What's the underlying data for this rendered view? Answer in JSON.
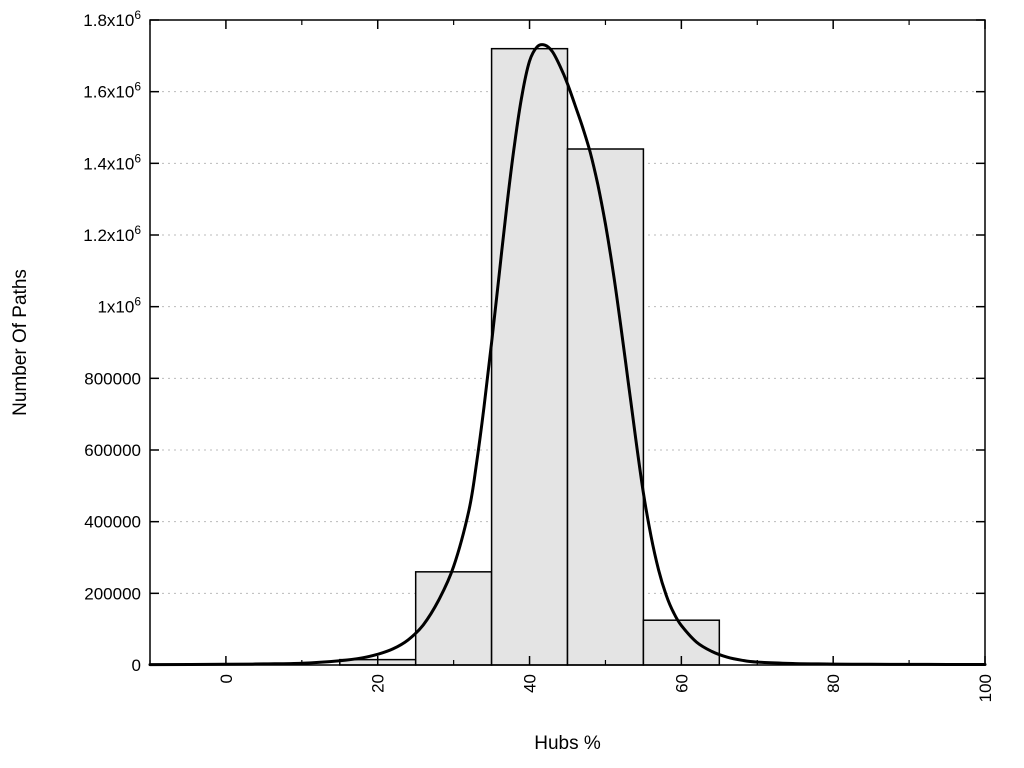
{
  "chart_data": {
    "type": "bar",
    "subtype": "histogram_with_fit_curve",
    "title": "",
    "xlabel": "Hubs %",
    "ylabel": "Number Of Paths",
    "xlim": [
      -10,
      100
    ],
    "ylim": [
      0,
      1800000
    ],
    "x_major_ticks": [
      0,
      20,
      40,
      60,
      80,
      100
    ],
    "x_minor_step": 10,
    "x_tick_rotation": -90,
    "y_ticks": [
      {
        "value": 0,
        "label": "0"
      },
      {
        "value": 200000,
        "label": "200000"
      },
      {
        "value": 400000,
        "label": "400000"
      },
      {
        "value": 600000,
        "label": "600000"
      },
      {
        "value": 800000,
        "label": "800000"
      },
      {
        "value": 1000000,
        "label": "1x10^6"
      },
      {
        "value": 1200000,
        "label": "1.2x10^6"
      },
      {
        "value": 1400000,
        "label": "1.4x10^6"
      },
      {
        "value": 1600000,
        "label": "1.6x10^6"
      },
      {
        "value": 1800000,
        "label": "1.8x10^6"
      }
    ],
    "grid": {
      "y": true,
      "x": false,
      "style": "dotted"
    },
    "legend": null,
    "bars": [
      {
        "x0": 15,
        "x1": 25,
        "value": 15000
      },
      {
        "x0": 25,
        "x1": 35,
        "value": 260000
      },
      {
        "x0": 35,
        "x1": 45,
        "value": 1720000
      },
      {
        "x0": 45,
        "x1": 55,
        "value": 1440000
      },
      {
        "x0": 55,
        "x1": 65,
        "value": 125000
      }
    ],
    "curve": {
      "name": "fit-curve",
      "points": [
        [
          -10,
          1000
        ],
        [
          0,
          2000
        ],
        [
          5,
          3000
        ],
        [
          10,
          5000
        ],
        [
          15,
          12000
        ],
        [
          18,
          20000
        ],
        [
          20,
          30000
        ],
        [
          22,
          45000
        ],
        [
          24,
          70000
        ],
        [
          26,
          112000
        ],
        [
          28,
          180000
        ],
        [
          30,
          275000
        ],
        [
          32,
          430000
        ],
        [
          33,
          560000
        ],
        [
          34,
          720000
        ],
        [
          35,
          900000
        ],
        [
          36,
          1090000
        ],
        [
          37,
          1280000
        ],
        [
          38,
          1450000
        ],
        [
          39,
          1590000
        ],
        [
          40,
          1685000
        ],
        [
          41,
          1725000
        ],
        [
          42,
          1730000
        ],
        [
          43,
          1712000
        ],
        [
          44,
          1672000
        ],
        [
          45,
          1622000
        ],
        [
          46,
          1562000
        ],
        [
          47,
          1500000
        ],
        [
          48,
          1430000
        ],
        [
          49,
          1340000
        ],
        [
          50,
          1230000
        ],
        [
          51,
          1100000
        ],
        [
          52,
          950000
        ],
        [
          53,
          790000
        ],
        [
          54,
          630000
        ],
        [
          55,
          480000
        ],
        [
          56,
          360000
        ],
        [
          57,
          265000
        ],
        [
          58,
          195000
        ],
        [
          59,
          145000
        ],
        [
          60,
          110000
        ],
        [
          62,
          64000
        ],
        [
          64,
          38000
        ],
        [
          66,
          22000
        ],
        [
          68,
          13000
        ],
        [
          70,
          8000
        ],
        [
          75,
          4000
        ],
        [
          80,
          2600
        ],
        [
          85,
          2000
        ],
        [
          90,
          1700
        ],
        [
          95,
          1500
        ],
        [
          100,
          1400
        ]
      ]
    },
    "colors": {
      "bar_fill": "#e4e4e4",
      "bar_border": "#000000",
      "curve": "#000000",
      "grid": "#bbbbbb",
      "border": "#000000",
      "background": "#ffffff",
      "text": "#000000"
    }
  }
}
